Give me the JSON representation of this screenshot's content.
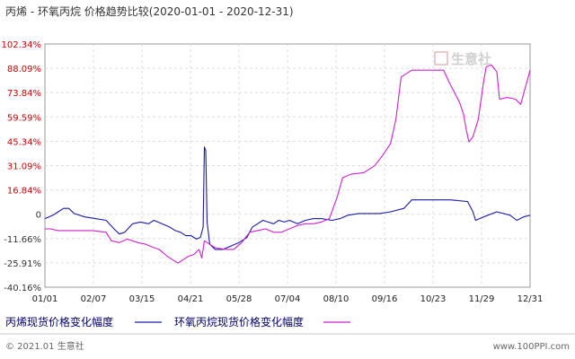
{
  "chart_data": {
    "type": "line",
    "title": "丙烯 - 环氧丙烷 价格趋势比较(2020-01-01 - 2020-12-31)",
    "ylim": [
      -40.16,
      102.34
    ],
    "y_ticks": [
      "102.34%",
      "88.09%",
      "73.84%",
      "59.59%",
      "45.34%",
      "31.09%",
      "16.84%",
      "0",
      "-11.66%",
      "-25.91%",
      "-40.16%"
    ],
    "y_tick_colors": [
      "#cc0000",
      "#cc0000",
      "#cc0000",
      "#cc0000",
      "#cc0000",
      "#cc0000",
      "#cc0000",
      "#333333",
      "#333333",
      "#333333",
      "#333333"
    ],
    "x_ticks": [
      "01/01",
      "02/07",
      "03/15",
      "04/21",
      "05/28",
      "07/04",
      "08/10",
      "09/16",
      "10/23",
      "11/29",
      "12/31"
    ],
    "x_range": [
      0,
      365
    ],
    "grid": true,
    "legend_placement": "bottom",
    "series": [
      {
        "name": "丙烯现货价格变化幅度",
        "color": "#1a1aa6",
        "points": [
          [
            0,
            0
          ],
          [
            6,
            2
          ],
          [
            10,
            4
          ],
          [
            14,
            6
          ],
          [
            18,
            6
          ],
          [
            22,
            3
          ],
          [
            30,
            1
          ],
          [
            38,
            0
          ],
          [
            46,
            -1
          ],
          [
            52,
            -6
          ],
          [
            56,
            -9
          ],
          [
            60,
            -8
          ],
          [
            66,
            -3
          ],
          [
            72,
            -2
          ],
          [
            78,
            -3
          ],
          [
            82,
            -1
          ],
          [
            88,
            -3
          ],
          [
            94,
            -5
          ],
          [
            98,
            -7
          ],
          [
            102,
            -8
          ],
          [
            106,
            -10
          ],
          [
            110,
            -10
          ],
          [
            114,
            -12
          ],
          [
            117,
            -11
          ],
          [
            119,
            -5
          ],
          [
            120,
            42
          ],
          [
            121,
            40
          ],
          [
            122,
            -2
          ],
          [
            124,
            -15
          ],
          [
            128,
            -18
          ],
          [
            134,
            -18
          ],
          [
            140,
            -16
          ],
          [
            146,
            -14
          ],
          [
            152,
            -11
          ],
          [
            156,
            -5
          ],
          [
            160,
            -3
          ],
          [
            164,
            -1
          ],
          [
            168,
            -2
          ],
          [
            172,
            -3
          ],
          [
            176,
            -1
          ],
          [
            180,
            -2
          ],
          [
            184,
            -1
          ],
          [
            190,
            -3
          ],
          [
            196,
            -1
          ],
          [
            202,
            0
          ],
          [
            208,
            0
          ],
          [
            216,
            -1
          ],
          [
            222,
            0
          ],
          [
            228,
            2
          ],
          [
            236,
            3
          ],
          [
            244,
            3
          ],
          [
            252,
            3
          ],
          [
            260,
            4
          ],
          [
            270,
            6
          ],
          [
            276,
            11
          ],
          [
            290,
            11
          ],
          [
            305,
            11
          ],
          [
            318,
            10
          ],
          [
            322,
            4
          ],
          [
            324,
            -1
          ],
          [
            330,
            1
          ],
          [
            340,
            4
          ],
          [
            350,
            2
          ],
          [
            355,
            -1
          ],
          [
            360,
            1
          ],
          [
            365,
            2
          ]
        ]
      },
      {
        "name": "环氧丙烷现货价格变化幅度",
        "color": "#cc22cc",
        "points": [
          [
            0,
            -6
          ],
          [
            4,
            -6
          ],
          [
            10,
            -7
          ],
          [
            18,
            -7
          ],
          [
            26,
            -7
          ],
          [
            36,
            -7
          ],
          [
            46,
            -8
          ],
          [
            50,
            -13
          ],
          [
            56,
            -14
          ],
          [
            62,
            -12
          ],
          [
            70,
            -14
          ],
          [
            76,
            -15
          ],
          [
            82,
            -17
          ],
          [
            86,
            -18
          ],
          [
            92,
            -22
          ],
          [
            96,
            -24
          ],
          [
            100,
            -26
          ],
          [
            104,
            -24
          ],
          [
            108,
            -22
          ],
          [
            112,
            -21
          ],
          [
            116,
            -18
          ],
          [
            118,
            -23
          ],
          [
            120,
            -13
          ],
          [
            124,
            -15
          ],
          [
            128,
            -17
          ],
          [
            136,
            -18
          ],
          [
            142,
            -18
          ],
          [
            148,
            -14
          ],
          [
            154,
            -8
          ],
          [
            160,
            -7
          ],
          [
            166,
            -6
          ],
          [
            172,
            -8
          ],
          [
            178,
            -8
          ],
          [
            184,
            -6
          ],
          [
            190,
            -4
          ],
          [
            196,
            -3
          ],
          [
            202,
            -3
          ],
          [
            208,
            -2
          ],
          [
            214,
            0
          ],
          [
            220,
            13
          ],
          [
            224,
            24
          ],
          [
            230,
            26
          ],
          [
            240,
            27
          ],
          [
            248,
            31
          ],
          [
            254,
            37
          ],
          [
            260,
            44
          ],
          [
            264,
            58
          ],
          [
            268,
            83
          ],
          [
            276,
            87
          ],
          [
            300,
            87
          ],
          [
            304,
            80
          ],
          [
            308,
            74
          ],
          [
            312,
            68
          ],
          [
            315,
            61
          ],
          [
            317,
            52
          ],
          [
            319,
            45
          ],
          [
            322,
            48
          ],
          [
            326,
            58
          ],
          [
            330,
            80
          ],
          [
            332,
            89
          ],
          [
            336,
            90
          ],
          [
            340,
            86
          ],
          [
            342,
            70
          ],
          [
            348,
            71
          ],
          [
            354,
            70
          ],
          [
            358,
            67
          ],
          [
            365,
            87
          ]
        ]
      }
    ]
  },
  "legend": [
    {
      "label": "丙烯现货价格变化幅度",
      "color": "#1a1aa6"
    },
    {
      "label": "环氧丙烷现货价格变化幅度",
      "color": "#cc22cc"
    }
  ],
  "watermark": "生意社",
  "footer": {
    "left": "© 2021.01 生意社",
    "right": "www.100PPI.com"
  }
}
